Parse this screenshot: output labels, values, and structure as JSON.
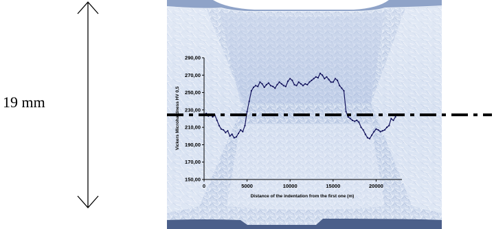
{
  "dimension_label": "19 mm",
  "chart_data": {
    "type": "line",
    "title": "",
    "xlabel": "Distance of the indentation from the first one (m)",
    "ylabel": "Vickers Microhardness  HV 0,5",
    "xlim": [
      0,
      23000
    ],
    "ylim": [
      150,
      290
    ],
    "xticks": [
      "0",
      "5000",
      "10000",
      "15000",
      "20000"
    ],
    "xtick_values": [
      0,
      5000,
      10000,
      15000,
      20000
    ],
    "yticks": [
      "150,00",
      "170,00",
      "190,00",
      "210,00",
      "230,00",
      "250,00",
      "270,00",
      "290,00"
    ],
    "ytick_values": [
      150,
      170,
      190,
      210,
      230,
      250,
      270,
      290
    ],
    "grid": false,
    "series_color": "#10105a",
    "x": [
      0,
      250,
      500,
      750,
      1000,
      1250,
      1500,
      1750,
      2000,
      2250,
      2500,
      2750,
      3000,
      3250,
      3500,
      3750,
      4000,
      4250,
      4500,
      4750,
      5000,
      5250,
      5500,
      5750,
      6000,
      6250,
      6500,
      6750,
      7000,
      7250,
      7500,
      7750,
      8000,
      8250,
      8500,
      8750,
      9000,
      9250,
      9500,
      9750,
      10000,
      10250,
      10500,
      10750,
      11000,
      11250,
      11500,
      11750,
      12000,
      12250,
      12500,
      12750,
      13000,
      13250,
      13500,
      13750,
      14000,
      14250,
      14500,
      14750,
      15000,
      15250,
      15500,
      15750,
      16000,
      16250,
      16500,
      16750,
      17000,
      17250,
      17500,
      17750,
      18000,
      18250,
      18500,
      18750,
      19000,
      19250,
      19500,
      19750,
      20000,
      20250,
      20500,
      20750,
      21000,
      21250,
      21500,
      21750,
      22000,
      22250
    ],
    "y": [
      224,
      226,
      223,
      225,
      222,
      224,
      218,
      212,
      208,
      207,
      204,
      206,
      200,
      202,
      198,
      199,
      203,
      207,
      205,
      212,
      228,
      240,
      252,
      256,
      258,
      257,
      262,
      260,
      256,
      259,
      261,
      258,
      257,
      255,
      259,
      262,
      260,
      258,
      257,
      263,
      266,
      264,
      259,
      258,
      262,
      260,
      258,
      260,
      259,
      262,
      264,
      266,
      268,
      267,
      272,
      270,
      266,
      268,
      265,
      262,
      262,
      266,
      264,
      258,
      255,
      252,
      228,
      222,
      220,
      218,
      217,
      218,
      216,
      210,
      207,
      202,
      198,
      197,
      201,
      205,
      208,
      207,
      205,
      206,
      207,
      210,
      212,
      220,
      218,
      222
    ]
  }
}
